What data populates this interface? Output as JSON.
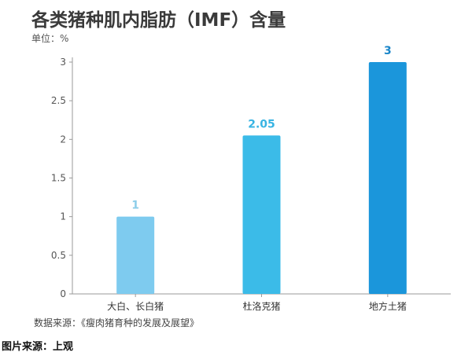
{
  "chart_data": {
    "type": "bar",
    "title": "各类猪种肌内脂肪（IMF）含量",
    "unit_label": "单位：%",
    "categories": [
      "大白、长白猪",
      "杜洛克猪",
      "地方土猪"
    ],
    "values": [
      1,
      2.05,
      3
    ],
    "value_labels": [
      "1",
      "2.05",
      "3"
    ],
    "ylim": [
      0,
      3
    ],
    "yticks": [
      "0",
      "0.5",
      "1",
      "1.5",
      "2",
      "2.5",
      "3"
    ],
    "grid": false,
    "bar_colors": [
      "#7ecbef",
      "#3bbbe8",
      "#1b96db"
    ],
    "label_colors": [
      "#8ccde9",
      "#38b4e3",
      "#1b86c9"
    ]
  },
  "source_note": "数据来源：《瘦肉猪育种的发展及展望》",
  "image_credit": "图片来源：上观"
}
